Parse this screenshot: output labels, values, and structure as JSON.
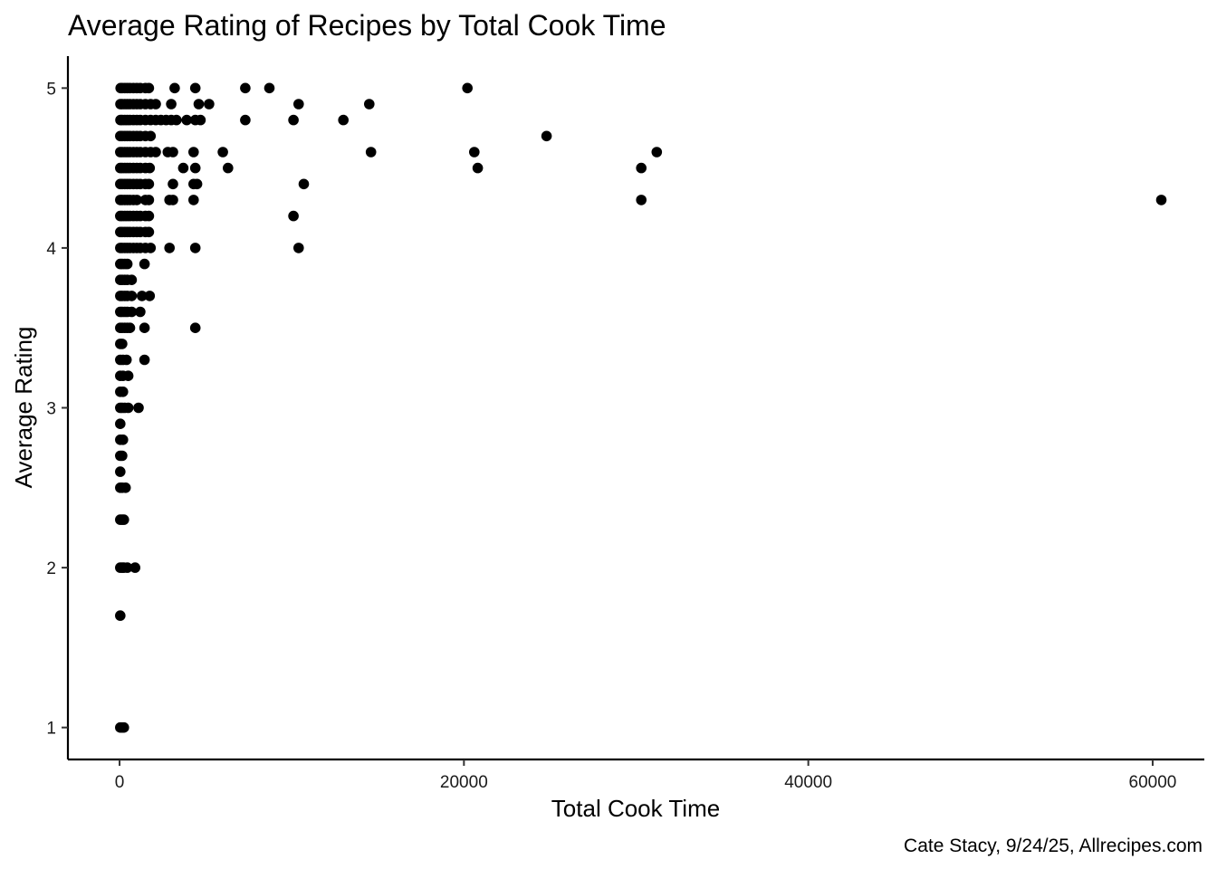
{
  "chart_data": {
    "type": "scatter",
    "title": "Average Rating of Recipes by Total Cook Time",
    "xlabel": "Total Cook Time",
    "ylabel": "Average Rating",
    "caption": "Cate Stacy, 9/24/25, Allrecipes.com",
    "xlim": [
      -3000,
      63000
    ],
    "ylim": [
      0.8,
      5.2
    ],
    "x_ticks": [
      0,
      20000,
      40000,
      60000
    ],
    "x_tick_labels": [
      "0",
      "20000",
      "40000",
      "60000"
    ],
    "y_ticks": [
      1,
      2,
      3,
      4,
      5
    ],
    "y_tick_labels": [
      "1",
      "2",
      "3",
      "4",
      "5"
    ],
    "grid": false,
    "legend": "none",
    "point_color": "#000000",
    "points": [
      [
        60,
        5.0
      ],
      [
        150,
        5.0
      ],
      [
        300,
        5.0
      ],
      [
        450,
        5.0
      ],
      [
        600,
        5.0
      ],
      [
        800,
        5.0
      ],
      [
        1000,
        5.0
      ],
      [
        1200,
        5.0
      ],
      [
        1500,
        5.0
      ],
      [
        1700,
        5.0
      ],
      [
        50,
        4.9
      ],
      [
        150,
        4.9
      ],
      [
        300,
        4.9
      ],
      [
        450,
        4.9
      ],
      [
        600,
        4.9
      ],
      [
        800,
        4.9
      ],
      [
        1000,
        4.9
      ],
      [
        1200,
        4.9
      ],
      [
        1500,
        4.9
      ],
      [
        1800,
        4.9
      ],
      [
        2100,
        4.9
      ],
      [
        50,
        4.8
      ],
      [
        150,
        4.8
      ],
      [
        300,
        4.8
      ],
      [
        450,
        4.8
      ],
      [
        600,
        4.8
      ],
      [
        800,
        4.8
      ],
      [
        1000,
        4.8
      ],
      [
        1200,
        4.8
      ],
      [
        1500,
        4.8
      ],
      [
        1800,
        4.8
      ],
      [
        2100,
        4.8
      ],
      [
        2400,
        4.8
      ],
      [
        2700,
        4.8
      ],
      [
        3000,
        4.8
      ],
      [
        40,
        4.7
      ],
      [
        150,
        4.7
      ],
      [
        300,
        4.7
      ],
      [
        450,
        4.7
      ],
      [
        600,
        4.7
      ],
      [
        800,
        4.7
      ],
      [
        1000,
        4.7
      ],
      [
        1200,
        4.7
      ],
      [
        1500,
        4.7
      ],
      [
        1800,
        4.7
      ],
      [
        40,
        4.6
      ],
      [
        150,
        4.6
      ],
      [
        300,
        4.6
      ],
      [
        450,
        4.6
      ],
      [
        600,
        4.6
      ],
      [
        800,
        4.6
      ],
      [
        1000,
        4.6
      ],
      [
        1200,
        4.6
      ],
      [
        1500,
        4.6
      ],
      [
        1800,
        4.6
      ],
      [
        2100,
        4.6
      ],
      [
        40,
        4.5
      ],
      [
        150,
        4.5
      ],
      [
        300,
        4.5
      ],
      [
        450,
        4.5
      ],
      [
        600,
        4.5
      ],
      [
        800,
        4.5
      ],
      [
        1000,
        4.5
      ],
      [
        1200,
        4.5
      ],
      [
        1500,
        4.5
      ],
      [
        1750,
        4.5
      ],
      [
        40,
        4.4
      ],
      [
        150,
        4.4
      ],
      [
        300,
        4.4
      ],
      [
        450,
        4.4
      ],
      [
        600,
        4.4
      ],
      [
        800,
        4.4
      ],
      [
        1000,
        4.4
      ],
      [
        1200,
        4.4
      ],
      [
        1500,
        4.4
      ],
      [
        1700,
        4.4
      ],
      [
        40,
        4.3
      ],
      [
        150,
        4.3
      ],
      [
        300,
        4.3
      ],
      [
        450,
        4.3
      ],
      [
        600,
        4.3
      ],
      [
        800,
        4.3
      ],
      [
        1000,
        4.3
      ],
      [
        1500,
        4.3
      ],
      [
        1700,
        4.3
      ],
      [
        40,
        4.2
      ],
      [
        150,
        4.2
      ],
      [
        300,
        4.2
      ],
      [
        450,
        4.2
      ],
      [
        600,
        4.2
      ],
      [
        800,
        4.2
      ],
      [
        1000,
        4.2
      ],
      [
        1200,
        4.2
      ],
      [
        1500,
        4.2
      ],
      [
        1700,
        4.2
      ],
      [
        40,
        4.1
      ],
      [
        150,
        4.1
      ],
      [
        300,
        4.1
      ],
      [
        450,
        4.1
      ],
      [
        600,
        4.1
      ],
      [
        800,
        4.1
      ],
      [
        1000,
        4.1
      ],
      [
        1200,
        4.1
      ],
      [
        1500,
        4.1
      ],
      [
        1700,
        4.1
      ],
      [
        40,
        4.0
      ],
      [
        150,
        4.0
      ],
      [
        300,
        4.0
      ],
      [
        450,
        4.0
      ],
      [
        600,
        4.0
      ],
      [
        800,
        4.0
      ],
      [
        1000,
        4.0
      ],
      [
        1200,
        4.0
      ],
      [
        1500,
        4.0
      ],
      [
        1800,
        4.0
      ],
      [
        40,
        3.9
      ],
      [
        150,
        3.9
      ],
      [
        300,
        3.9
      ],
      [
        450,
        3.9
      ],
      [
        1450,
        3.9
      ],
      [
        40,
        3.8
      ],
      [
        150,
        3.8
      ],
      [
        300,
        3.8
      ],
      [
        450,
        3.8
      ],
      [
        700,
        3.8
      ],
      [
        40,
        3.7
      ],
      [
        150,
        3.7
      ],
      [
        300,
        3.7
      ],
      [
        450,
        3.7
      ],
      [
        700,
        3.7
      ],
      [
        1300,
        3.7
      ],
      [
        1750,
        3.7
      ],
      [
        40,
        3.6
      ],
      [
        150,
        3.6
      ],
      [
        300,
        3.6
      ],
      [
        450,
        3.6
      ],
      [
        700,
        3.6
      ],
      [
        1200,
        3.6
      ],
      [
        40,
        3.5
      ],
      [
        150,
        3.5
      ],
      [
        300,
        3.5
      ],
      [
        450,
        3.5
      ],
      [
        600,
        3.5
      ],
      [
        1450,
        3.5
      ],
      [
        40,
        3.4
      ],
      [
        150,
        3.4
      ],
      [
        40,
        3.3
      ],
      [
        200,
        3.3
      ],
      [
        400,
        3.3
      ],
      [
        1450,
        3.3
      ],
      [
        40,
        3.2
      ],
      [
        200,
        3.2
      ],
      [
        500,
        3.2
      ],
      [
        40,
        3.1
      ],
      [
        200,
        3.1
      ],
      [
        40,
        3.0
      ],
      [
        150,
        3.0
      ],
      [
        300,
        3.0
      ],
      [
        500,
        3.0
      ],
      [
        1100,
        3.0
      ],
      [
        40,
        2.9
      ],
      [
        40,
        2.8
      ],
      [
        200,
        2.8
      ],
      [
        40,
        2.7
      ],
      [
        150,
        2.7
      ],
      [
        40,
        2.6
      ],
      [
        40,
        2.5
      ],
      [
        150,
        2.5
      ],
      [
        350,
        2.5
      ],
      [
        40,
        2.3
      ],
      [
        150,
        2.3
      ],
      [
        250,
        2.3
      ],
      [
        40,
        2.0
      ],
      [
        150,
        2.0
      ],
      [
        250,
        2.0
      ],
      [
        450,
        2.0
      ],
      [
        900,
        2.0
      ],
      [
        40,
        1.7
      ],
      [
        40,
        1.0
      ],
      [
        150,
        1.0
      ],
      [
        250,
        1.0
      ],
      [
        3200,
        5.0
      ],
      [
        4400,
        5.0
      ],
      [
        7300,
        5.0
      ],
      [
        8700,
        5.0
      ],
      [
        20200,
        5.0
      ],
      [
        3000,
        4.9
      ],
      [
        4600,
        4.9
      ],
      [
        5200,
        4.9
      ],
      [
        10400,
        4.9
      ],
      [
        14500,
        4.9
      ],
      [
        3300,
        4.8
      ],
      [
        3900,
        4.8
      ],
      [
        4400,
        4.8
      ],
      [
        4700,
        4.8
      ],
      [
        7300,
        4.8
      ],
      [
        10100,
        4.8
      ],
      [
        13000,
        4.8
      ],
      [
        24800,
        4.7
      ],
      [
        2800,
        4.6
      ],
      [
        3100,
        4.6
      ],
      [
        4300,
        4.6
      ],
      [
        6000,
        4.6
      ],
      [
        14600,
        4.6
      ],
      [
        20600,
        4.6
      ],
      [
        31200,
        4.6
      ],
      [
        3700,
        4.5
      ],
      [
        4400,
        4.5
      ],
      [
        6300,
        4.5
      ],
      [
        20800,
        4.5
      ],
      [
        30300,
        4.5
      ],
      [
        3100,
        4.4
      ],
      [
        4300,
        4.4
      ],
      [
        4500,
        4.4
      ],
      [
        10700,
        4.4
      ],
      [
        2900,
        4.3
      ],
      [
        3100,
        4.3
      ],
      [
        4300,
        4.3
      ],
      [
        30300,
        4.3
      ],
      [
        60500,
        4.3
      ],
      [
        10100,
        4.2
      ],
      [
        2900,
        4.0
      ],
      [
        4400,
        4.0
      ],
      [
        10400,
        4.0
      ],
      [
        4400,
        3.5
      ]
    ]
  }
}
